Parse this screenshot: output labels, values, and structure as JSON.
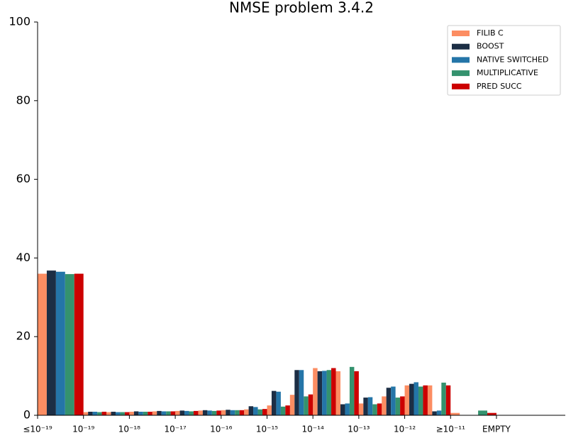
{
  "chart_data": {
    "type": "histogram",
    "title": "NMSE problem 3.4.2",
    "bins": [
      0,
      2,
      3,
      4,
      5,
      6,
      7,
      8,
      9,
      10,
      11,
      12,
      13,
      14,
      15,
      16,
      17,
      18,
      20,
      22
    ],
    "xlim": [
      0,
      23
    ],
    "xticks": [
      {
        "value": 0,
        "label": "≤10⁻¹⁹"
      },
      {
        "value": 2,
        "label": "10⁻¹⁹"
      },
      {
        "value": 4,
        "label": "10⁻¹⁸"
      },
      {
        "value": 6,
        "label": "10⁻¹⁷"
      },
      {
        "value": 8,
        "label": "10⁻¹⁶"
      },
      {
        "value": 10,
        "label": "10⁻¹⁵"
      },
      {
        "value": 12,
        "label": "10⁻¹⁴"
      },
      {
        "value": 14,
        "label": "10⁻¹³"
      },
      {
        "value": 16,
        "label": "10⁻¹²"
      },
      {
        "value": 18,
        "label": "≥10⁻¹¹"
      },
      {
        "value": 20,
        "label": "EMPTY"
      }
    ],
    "ylim": [
      0,
      100
    ],
    "yticks": [
      0,
      20,
      40,
      60,
      80,
      100
    ],
    "legend": "upper right",
    "series": [
      {
        "name": "FILIB C",
        "color": "#fc8d62",
        "values": [
          36,
          0.8,
          0.8,
          0.9,
          1.0,
          1.1,
          1.2,
          1.3,
          1.5,
          2.5,
          5.2,
          12,
          11.2,
          3.0,
          4.8,
          7.6,
          7.6,
          0.6,
          0
        ]
      },
      {
        "name": "BOOST",
        "color": "#1c2e45",
        "values": [
          36.8,
          0.9,
          0.9,
          1.0,
          1.1,
          1.2,
          1.3,
          1.4,
          2.3,
          6.2,
          11.5,
          11.2,
          2.8,
          4.5,
          7.0,
          8.0,
          1.0,
          0,
          0
        ]
      },
      {
        "name": "NATIVE SWITCHED",
        "color": "#2475a8",
        "values": [
          36.5,
          0.9,
          0.8,
          0.9,
          1.0,
          1.1,
          1.2,
          1.3,
          2.1,
          6.0,
          11.5,
          11.3,
          3.0,
          4.6,
          7.3,
          8.4,
          1.2,
          0,
          0
        ]
      },
      {
        "name": "MULTIPLICATIVE",
        "color": "#34926e",
        "values": [
          35.9,
          0.8,
          0.8,
          0.9,
          1.0,
          1.0,
          1.1,
          1.3,
          1.5,
          2.2,
          4.8,
          11.5,
          12.3,
          2.8,
          4.5,
          7.3,
          8.3,
          1.2,
          0
        ]
      },
      {
        "name": "PRED SUCC",
        "color": "#cc0000",
        "values": [
          36,
          0.9,
          0.8,
          0.9,
          1.0,
          1.1,
          1.2,
          1.3,
          1.6,
          2.5,
          5.3,
          12,
          11.2,
          3.0,
          4.8,
          7.6,
          7.6,
          0.6,
          0
        ]
      }
    ]
  }
}
